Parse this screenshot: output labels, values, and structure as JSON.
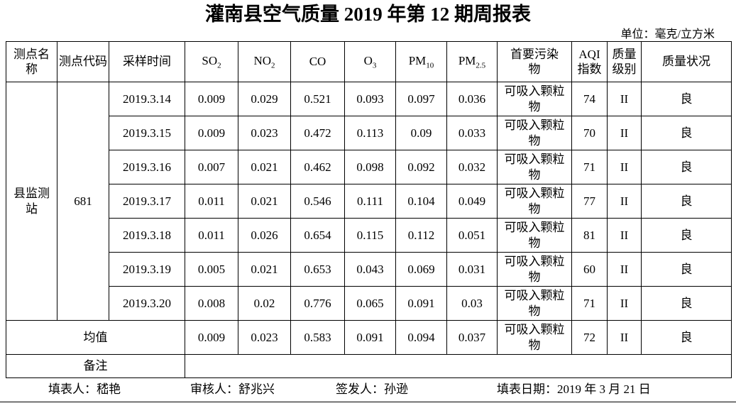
{
  "title": "灌南县空气质量 2019 年第 12 期周报表",
  "unit_note": "单位：毫克/立方米",
  "table": {
    "headers": [
      {
        "label": "测点名称",
        "sub": ""
      },
      {
        "label": "测点代码",
        "sub": ""
      },
      {
        "label": "采样时间",
        "sub": ""
      },
      {
        "label": "SO",
        "sub": "2"
      },
      {
        "label": "NO",
        "sub": "2"
      },
      {
        "label": "CO",
        "sub": ""
      },
      {
        "label": "O",
        "sub": "3"
      },
      {
        "label": "PM",
        "sub": "10"
      },
      {
        "label": "PM",
        "sub": "2.5"
      },
      {
        "label": "首要污染物",
        "sub": ""
      },
      {
        "label": "AQI指数",
        "sub": ""
      },
      {
        "label": "质量级别",
        "sub": ""
      },
      {
        "label": "质量状况",
        "sub": ""
      }
    ],
    "station": {
      "name": "县监测站",
      "code": "681"
    },
    "rows": [
      {
        "date": "2019.3.14",
        "so2": "0.009",
        "no2": "0.029",
        "co": "0.521",
        "o3": "0.093",
        "pm10": "0.097",
        "pm25": "0.036",
        "primary_pollutant": "可吸入颗粒物",
        "aqi": "74",
        "grade": "II",
        "status": "良"
      },
      {
        "date": "2019.3.15",
        "so2": "0.009",
        "no2": "0.023",
        "co": "0.472",
        "o3": "0.113",
        "pm10": "0.09",
        "pm25": "0.033",
        "primary_pollutant": "可吸入颗粒物",
        "aqi": "70",
        "grade": "II",
        "status": "良"
      },
      {
        "date": "2019.3.16",
        "so2": "0.007",
        "no2": "0.021",
        "co": "0.462",
        "o3": "0.098",
        "pm10": "0.092",
        "pm25": "0.032",
        "primary_pollutant": "可吸入颗粒物",
        "aqi": "71",
        "grade": "II",
        "status": "良"
      },
      {
        "date": "2019.3.17",
        "so2": "0.011",
        "no2": "0.021",
        "co": "0.546",
        "o3": "0.111",
        "pm10": "0.104",
        "pm25": "0.049",
        "primary_pollutant": "可吸入颗粒物",
        "aqi": "77",
        "grade": "II",
        "status": "良"
      },
      {
        "date": "2019.3.18",
        "so2": "0.011",
        "no2": "0.026",
        "co": "0.654",
        "o3": "0.115",
        "pm10": "0.112",
        "pm25": "0.051",
        "primary_pollutant": "可吸入颗粒物",
        "aqi": "81",
        "grade": "II",
        "status": "良"
      },
      {
        "date": "2019.3.19",
        "so2": "0.005",
        "no2": "0.021",
        "co": "0.653",
        "o3": "0.043",
        "pm10": "0.069",
        "pm25": "0.031",
        "primary_pollutant": "可吸入颗粒物",
        "aqi": "60",
        "grade": "II",
        "status": "良"
      },
      {
        "date": "2019.3.20",
        "so2": "0.008",
        "no2": "0.02",
        "co": "0.776",
        "o3": "0.065",
        "pm10": "0.091",
        "pm25": "0.03",
        "primary_pollutant": "可吸入颗粒物",
        "aqi": "71",
        "grade": "II",
        "status": "良"
      }
    ],
    "average": {
      "label": "均值",
      "so2": "0.009",
      "no2": "0.023",
      "co": "0.583",
      "o3": "0.091",
      "pm10": "0.094",
      "pm25": "0.037",
      "primary_pollutant": "可吸入颗粒物",
      "aqi": "72",
      "grade": "II",
      "status": "良"
    },
    "remark": {
      "label": "备注",
      "value": ""
    }
  },
  "footer": {
    "preparer": "填表人：嵇艳",
    "reviewer": "审核人：舒兆兴",
    "issuer": "签发人：孙逊",
    "date": "填表日期：2019 年 3 月 21 日"
  }
}
